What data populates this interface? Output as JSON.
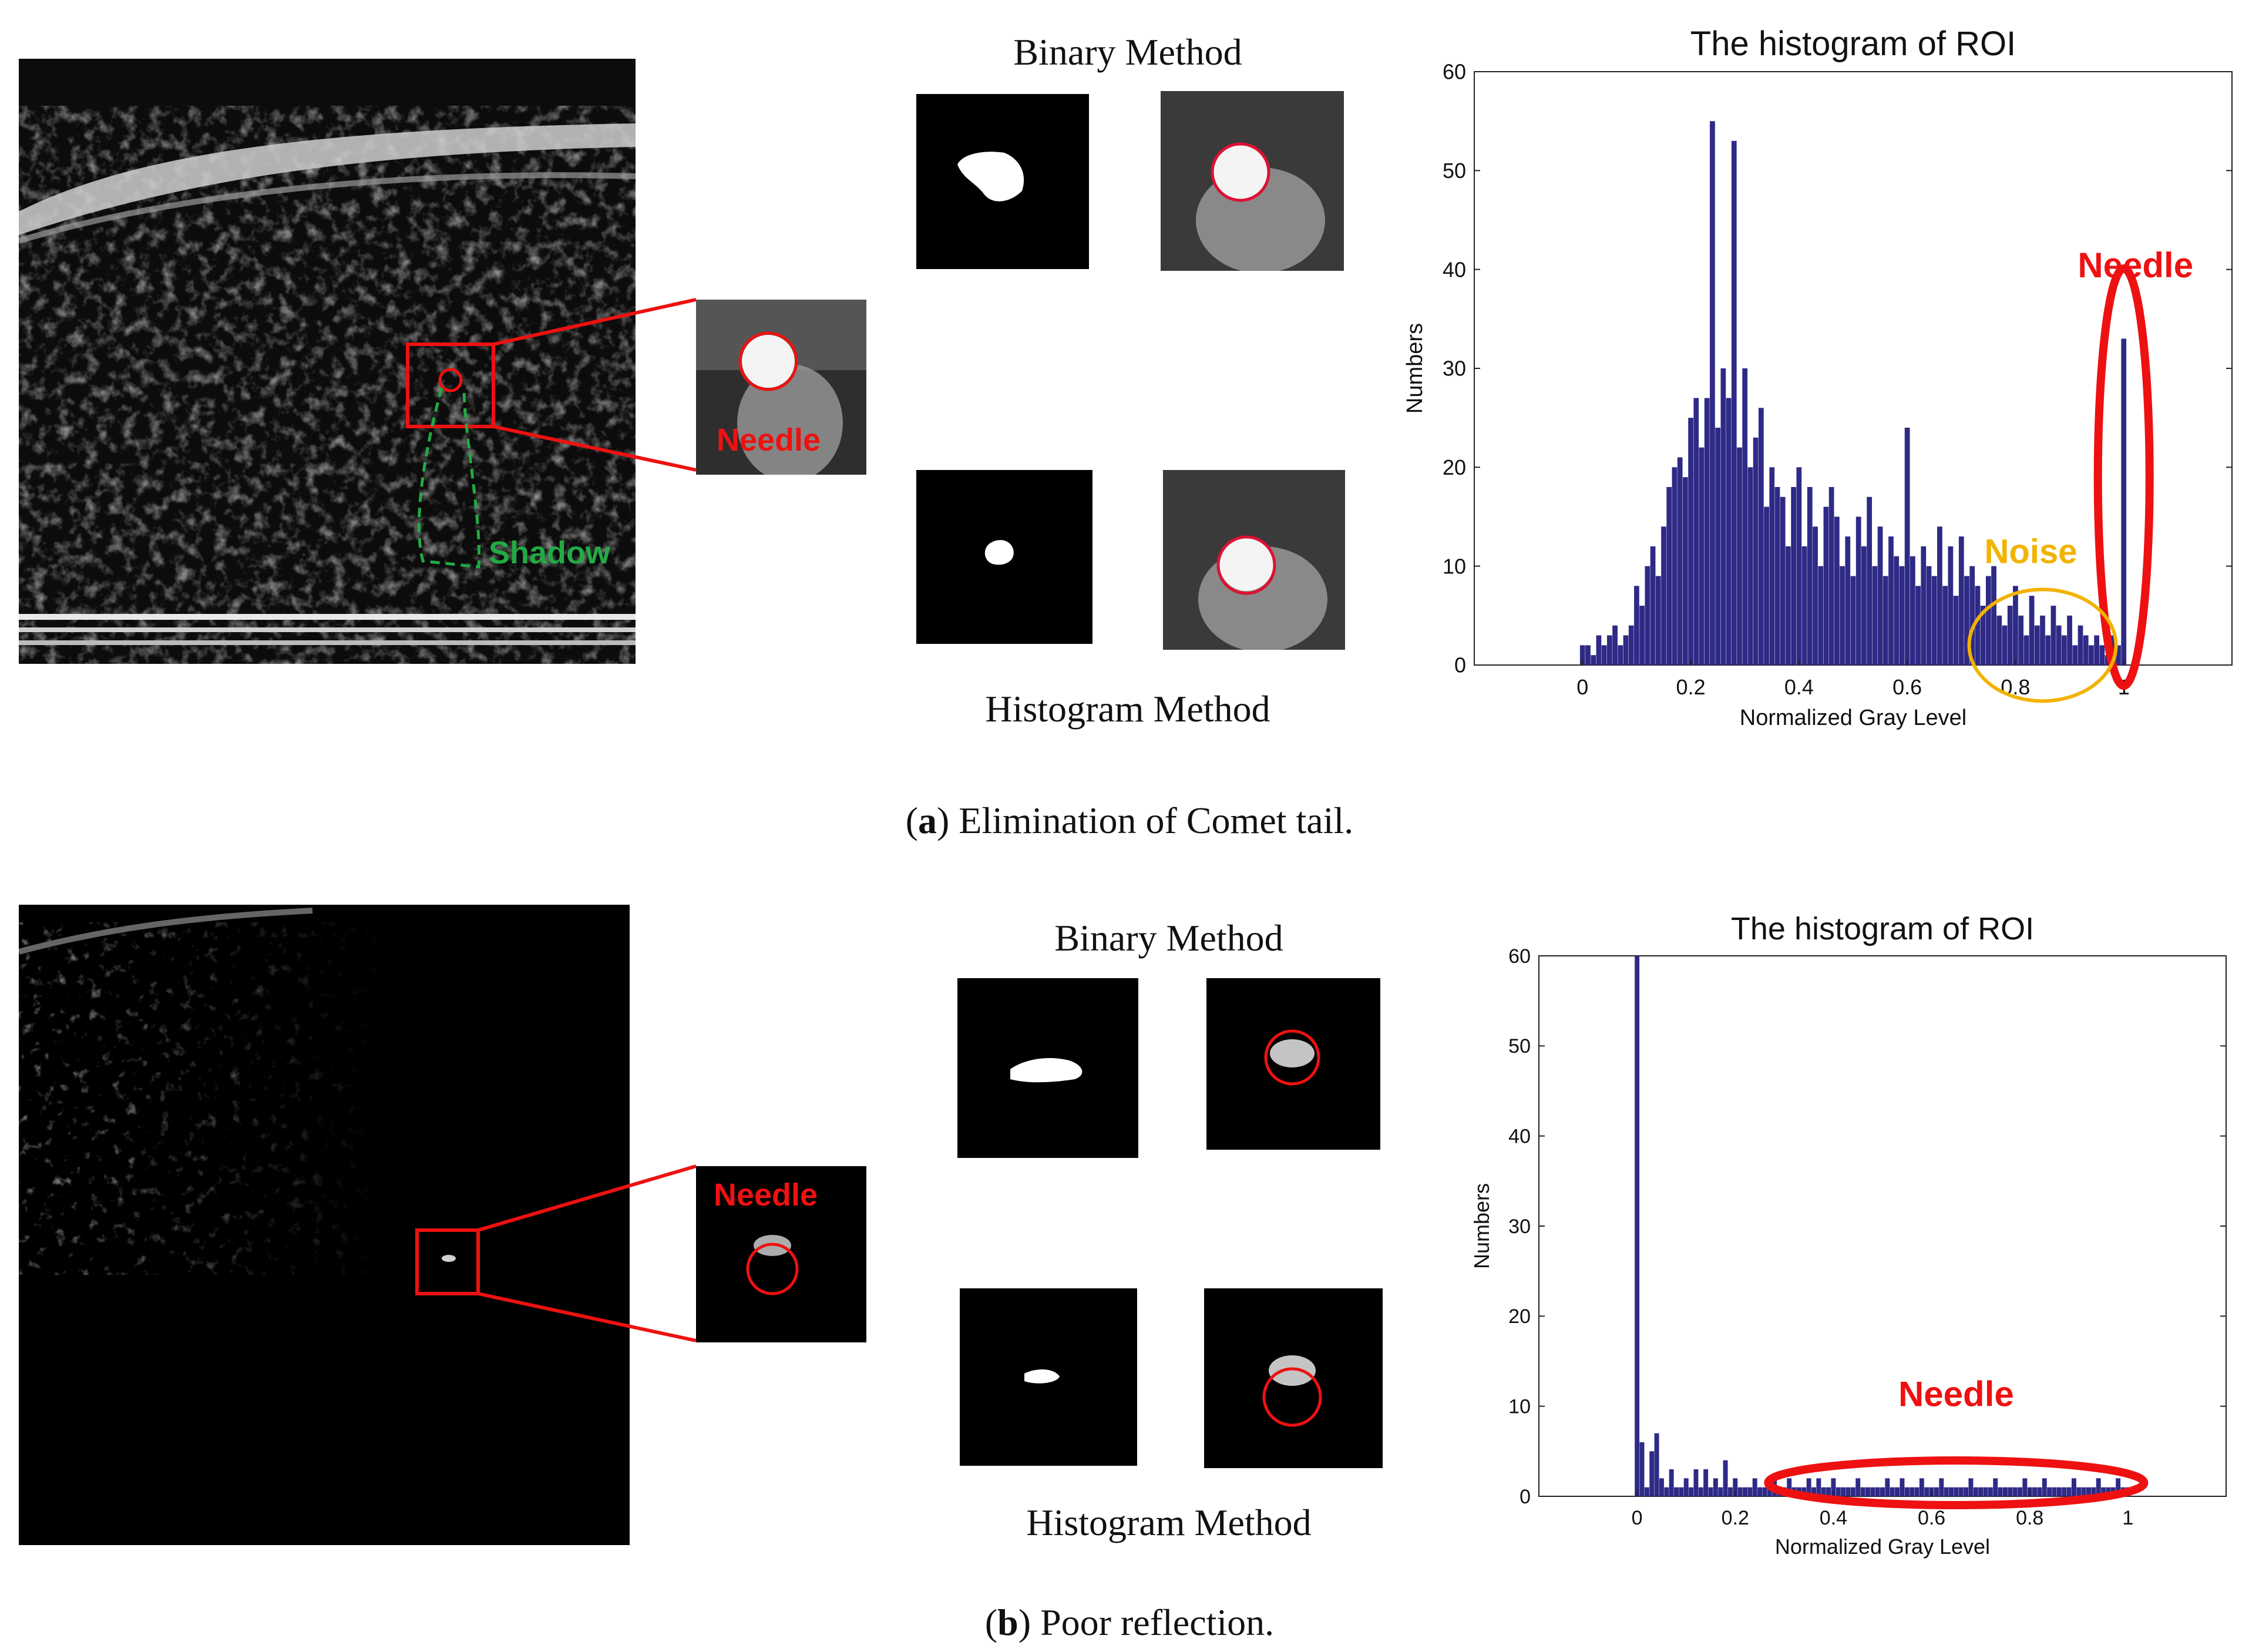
{
  "panel_a": {
    "overlay_labels": {
      "needle": "Needle",
      "shadow": "Shadow"
    },
    "binary_title": "Binary Method",
    "histogram_title": "Histogram Method",
    "caption_letter": "a",
    "caption_text": "Elimination of Comet tail.",
    "annotations": {
      "needle": "Needle",
      "noise": "Noise"
    },
    "colors": {
      "needle": "#ee1111",
      "shadow": "#22aa44",
      "noise": "#f2b300",
      "bars": "#2e2a86"
    }
  },
  "panel_b": {
    "overlay_labels": {
      "needle": "Needle"
    },
    "binary_title": "Binary Method",
    "histogram_title": "Histogram Method",
    "caption_letter": "b",
    "caption_text": "Poor reflection.",
    "annotations": {
      "needle": "Needle"
    }
  },
  "chart_data": [
    {
      "type": "bar",
      "title": "The histogram of ROI",
      "xlabel": "Normalized Gray Level",
      "ylabel": "Numbers",
      "xlim": [
        -0.2,
        1.2
      ],
      "ylim": [
        0,
        60
      ],
      "xticks": [
        "0",
        "0.2",
        "0.4",
        "0.6",
        "0.8",
        "1"
      ],
      "yticks": [
        "0",
        "10",
        "20",
        "30",
        "40",
        "50",
        "60"
      ],
      "x": [
        0.0,
        0.01,
        0.02,
        0.03,
        0.04,
        0.05,
        0.06,
        0.07,
        0.08,
        0.09,
        0.1,
        0.11,
        0.12,
        0.13,
        0.14,
        0.15,
        0.16,
        0.17,
        0.18,
        0.19,
        0.2,
        0.21,
        0.22,
        0.23,
        0.24,
        0.25,
        0.26,
        0.27,
        0.28,
        0.29,
        0.3,
        0.31,
        0.32,
        0.33,
        0.34,
        0.35,
        0.36,
        0.37,
        0.38,
        0.39,
        0.4,
        0.41,
        0.42,
        0.43,
        0.44,
        0.45,
        0.46,
        0.47,
        0.48,
        0.49,
        0.5,
        0.51,
        0.52,
        0.53,
        0.54,
        0.55,
        0.56,
        0.57,
        0.58,
        0.59,
        0.6,
        0.61,
        0.62,
        0.63,
        0.64,
        0.65,
        0.66,
        0.67,
        0.68,
        0.69,
        0.7,
        0.71,
        0.72,
        0.73,
        0.74,
        0.75,
        0.76,
        0.77,
        0.78,
        0.79,
        0.8,
        0.81,
        0.82,
        0.83,
        0.84,
        0.85,
        0.86,
        0.87,
        0.88,
        0.89,
        0.9,
        0.91,
        0.92,
        0.93,
        0.94,
        0.95,
        0.96,
        0.97,
        0.98,
        0.99,
        1.0
      ],
      "values": [
        2,
        2,
        1,
        3,
        2,
        3,
        4,
        2,
        3,
        4,
        8,
        6,
        10,
        12,
        9,
        14,
        18,
        20,
        21,
        19,
        25,
        27,
        22,
        27,
        55,
        24,
        30,
        27,
        53,
        22,
        30,
        20,
        23,
        26,
        16,
        20,
        18,
        17,
        12,
        18,
        20,
        12,
        18,
        14,
        10,
        16,
        18,
        15,
        10,
        13,
        9,
        15,
        12,
        17,
        10,
        14,
        9,
        13,
        11,
        10,
        24,
        11,
        8,
        12,
        10,
        9,
        14,
        8,
        12,
        7,
        13,
        9,
        10,
        8,
        6,
        9,
        10,
        5,
        4,
        6,
        8,
        5,
        3,
        7,
        4,
        5,
        3,
        6,
        4,
        3,
        5,
        2,
        4,
        3,
        2,
        3,
        2,
        1,
        3,
        2,
        33
      ],
      "annotations": [
        "Needle",
        "Noise"
      ]
    },
    {
      "type": "bar",
      "title": "The histogram of ROI",
      "xlabel": "Normalized Gray Level",
      "ylabel": "Numbers",
      "xlim": [
        -0.2,
        1.2
      ],
      "ylim": [
        0,
        60
      ],
      "xticks": [
        "0",
        "0.2",
        "0.4",
        "0.6",
        "0.8",
        "1"
      ],
      "yticks": [
        "0",
        "10",
        "20",
        "30",
        "40",
        "50",
        "60"
      ],
      "x": [
        0.0,
        0.01,
        0.02,
        0.03,
        0.04,
        0.05,
        0.06,
        0.07,
        0.08,
        0.09,
        0.1,
        0.11,
        0.12,
        0.13,
        0.14,
        0.15,
        0.16,
        0.17,
        0.18,
        0.19,
        0.2,
        0.21,
        0.22,
        0.23,
        0.24,
        0.25,
        0.26,
        0.27,
        0.28,
        0.29,
        0.3,
        0.31,
        0.32,
        0.33,
        0.34,
        0.35,
        0.36,
        0.37,
        0.38,
        0.39,
        0.4,
        0.41,
        0.42,
        0.43,
        0.44,
        0.45,
        0.46,
        0.47,
        0.48,
        0.49,
        0.5,
        0.51,
        0.52,
        0.53,
        0.54,
        0.55,
        0.56,
        0.57,
        0.58,
        0.59,
        0.6,
        0.61,
        0.62,
        0.63,
        0.64,
        0.65,
        0.66,
        0.67,
        0.68,
        0.69,
        0.7,
        0.71,
        0.72,
        0.73,
        0.74,
        0.75,
        0.76,
        0.77,
        0.78,
        0.79,
        0.8,
        0.81,
        0.82,
        0.83,
        0.84,
        0.85,
        0.86,
        0.87,
        0.88,
        0.89,
        0.9,
        0.91,
        0.92,
        0.93,
        0.94,
        0.95,
        0.96,
        0.97,
        0.98,
        0.99,
        1.0
      ],
      "values": [
        60,
        6,
        1,
        5,
        7,
        2,
        1,
        3,
        1,
        1,
        2,
        1,
        3,
        1,
        3,
        1,
        2,
        1,
        4,
        1,
        2,
        1,
        1,
        1,
        2,
        1,
        1,
        1,
        2,
        1,
        1,
        2,
        1,
        1,
        1,
        2,
        1,
        2,
        1,
        1,
        2,
        1,
        1,
        1,
        1,
        2,
        1,
        1,
        1,
        1,
        1,
        2,
        1,
        1,
        2,
        1,
        1,
        1,
        2,
        1,
        1,
        1,
        2,
        1,
        1,
        1,
        1,
        1,
        2,
        1,
        1,
        1,
        1,
        2,
        1,
        1,
        1,
        1,
        1,
        2,
        1,
        1,
        1,
        2,
        1,
        1,
        1,
        1,
        1,
        2,
        1,
        1,
        1,
        1,
        2,
        1,
        1,
        1,
        2,
        1,
        1
      ],
      "annotations": [
        "Needle"
      ]
    }
  ]
}
